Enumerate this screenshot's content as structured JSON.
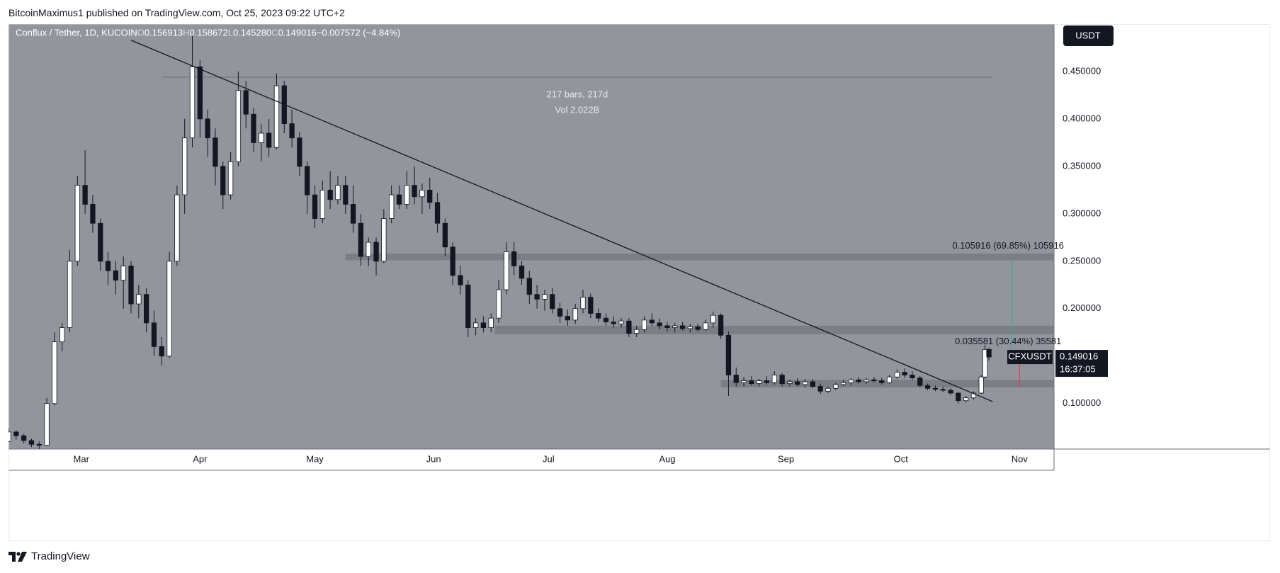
{
  "header": {
    "publisher": "BitcoinMaximus1 published on TradingView.com, Oct 25, 2023 09:22 UTC+2"
  },
  "footer": {
    "brand": "TradingView",
    "logo_icon": "tradingview-logo-icon"
  },
  "colors": {
    "chart_bg": "#93959d",
    "axis_bg": "#ffffff",
    "candle_up": "#ffffff",
    "candle_down": "#131722",
    "wick": "#131722",
    "zone": "#7c7e86",
    "trendline": "#131722",
    "price_label_bg": "#131722",
    "measure_green": "#22ab94",
    "measure_red": "#f23645"
  },
  "chart_data": {
    "type": "candlestick",
    "symbol": "Conflux / Tether, 1D, KUCOIN",
    "ohlc_legend": {
      "o_label": "O",
      "o": "0.156913",
      "h_label": "H",
      "h": "0.158672",
      "l_label": "L",
      "l": "0.145280",
      "c_label": "C",
      "c": "0.149016",
      "change": "−0.007572 (−4.84%)"
    },
    "currency_button": "USDT",
    "y_ticks": [
      {
        "value": 0.45,
        "label": "0.450000"
      },
      {
        "value": 0.4,
        "label": "0.400000"
      },
      {
        "value": 0.35,
        "label": "0.350000"
      },
      {
        "value": 0.3,
        "label": "0.300000"
      },
      {
        "value": 0.25,
        "label": "0.250000"
      },
      {
        "value": 0.2,
        "label": "0.200000"
      },
      {
        "value": 0.1,
        "label": "0.100000"
      }
    ],
    "ylim": [
      0.052,
      0.5
    ],
    "x_ticks": [
      {
        "date": "2023-03-01",
        "label": "Mar"
      },
      {
        "date": "2023-04-01",
        "label": "Apr"
      },
      {
        "date": "2023-05-01",
        "label": "May"
      },
      {
        "date": "2023-06-01",
        "label": "Jun"
      },
      {
        "date": "2023-07-01",
        "label": "Jul"
      },
      {
        "date": "2023-08-01",
        "label": "Aug"
      },
      {
        "date": "2023-09-01",
        "label": "Sep"
      },
      {
        "date": "2023-10-01",
        "label": "Oct"
      },
      {
        "date": "2023-11-01",
        "label": "Nov"
      }
    ],
    "xlim": [
      "2023-02-10",
      "2023-11-10"
    ],
    "current_price": {
      "symbol": "CFXUSDT",
      "price": "0.149016",
      "countdown": "16:37:05",
      "value": 0.149016
    },
    "zones": [
      {
        "y_low": 0.251,
        "y_high": 0.258,
        "x_start": "2023-05-09",
        "x_end": "2023-11-10"
      },
      {
        "y_low": 0.173,
        "y_high": 0.182,
        "x_start": "2023-06-17",
        "x_end": "2023-11-10"
      },
      {
        "y_low": 0.117,
        "y_high": 0.125,
        "x_start": "2023-08-15",
        "x_end": "2023-11-10"
      }
    ],
    "trendline": {
      "x1": "2023-03-14",
      "y1": 0.483,
      "x2": "2023-10-25",
      "y2": 0.102
    },
    "range_measure": {
      "x_start": "2023-03-22",
      "x_end": "2023-10-25",
      "y": 0.444,
      "label_bars": "217 bars, 217d",
      "label_vol": "Vol 2.022B"
    },
    "measurements": [
      {
        "text": "0.105916 (69.85%) 105916",
        "y": 0.266,
        "x": "2023-10-29",
        "color": "measure_green",
        "x_start": "2023-10-30",
        "y_from": 0.252,
        "y_to": 0.15
      },
      {
        "text": "0.035581 (30.44%) 35581",
        "y": 0.165,
        "x": "2023-10-29",
        "color": "measure_red",
        "x_start": "2023-11-01",
        "y_from": 0.15,
        "y_to": 0.117
      }
    ],
    "candles": [
      [
        "2023-02-10",
        0.06,
        0.074,
        0.06,
        0.07
      ],
      [
        "2023-02-12",
        0.07,
        0.072,
        0.062,
        0.066
      ],
      [
        "2023-02-14",
        0.066,
        0.068,
        0.058,
        0.061
      ],
      [
        "2023-02-16",
        0.061,
        0.063,
        0.054,
        0.057
      ],
      [
        "2023-02-18",
        0.057,
        0.06,
        0.052,
        0.056
      ],
      [
        "2023-02-20",
        0.056,
        0.106,
        0.055,
        0.1
      ],
      [
        "2023-02-22",
        0.1,
        0.175,
        0.098,
        0.165
      ],
      [
        "2023-02-24",
        0.165,
        0.185,
        0.155,
        0.18
      ],
      [
        "2023-02-26",
        0.18,
        0.262,
        0.175,
        0.25
      ],
      [
        "2023-02-28",
        0.25,
        0.34,
        0.245,
        0.33
      ],
      [
        "2023-03-02",
        0.33,
        0.367,
        0.3,
        0.31
      ],
      [
        "2023-03-04",
        0.31,
        0.32,
        0.28,
        0.29
      ],
      [
        "2023-03-06",
        0.29,
        0.295,
        0.24,
        0.25
      ],
      [
        "2023-03-08",
        0.25,
        0.26,
        0.225,
        0.24
      ],
      [
        "2023-03-10",
        0.24,
        0.25,
        0.215,
        0.23
      ],
      [
        "2023-03-12",
        0.23,
        0.255,
        0.2,
        0.245
      ],
      [
        "2023-03-14",
        0.245,
        0.25,
        0.195,
        0.205
      ],
      [
        "2023-03-16",
        0.205,
        0.225,
        0.19,
        0.215
      ],
      [
        "2023-03-18",
        0.215,
        0.222,
        0.175,
        0.185
      ],
      [
        "2023-03-20",
        0.185,
        0.198,
        0.15,
        0.16
      ],
      [
        "2023-03-22",
        0.16,
        0.17,
        0.14,
        0.15
      ],
      [
        "2023-03-24",
        0.15,
        0.26,
        0.148,
        0.25
      ],
      [
        "2023-03-26",
        0.25,
        0.33,
        0.245,
        0.32
      ],
      [
        "2023-03-28",
        0.32,
        0.4,
        0.3,
        0.38
      ],
      [
        "2023-03-30",
        0.38,
        0.488,
        0.37,
        0.455
      ],
      [
        "2023-04-01",
        0.455,
        0.462,
        0.38,
        0.4
      ],
      [
        "2023-04-03",
        0.4,
        0.41,
        0.36,
        0.38
      ],
      [
        "2023-04-05",
        0.38,
        0.39,
        0.33,
        0.35
      ],
      [
        "2023-04-07",
        0.35,
        0.355,
        0.305,
        0.32
      ],
      [
        "2023-04-09",
        0.32,
        0.365,
        0.315,
        0.355
      ],
      [
        "2023-04-11",
        0.355,
        0.45,
        0.35,
        0.43
      ],
      [
        "2023-04-13",
        0.43,
        0.44,
        0.39,
        0.405
      ],
      [
        "2023-04-15",
        0.405,
        0.412,
        0.365,
        0.375
      ],
      [
        "2023-04-17",
        0.375,
        0.395,
        0.355,
        0.385
      ],
      [
        "2023-04-19",
        0.385,
        0.4,
        0.36,
        0.37
      ],
      [
        "2023-04-21",
        0.37,
        0.448,
        0.368,
        0.435
      ],
      [
        "2023-04-23",
        0.435,
        0.44,
        0.385,
        0.395
      ],
      [
        "2023-04-25",
        0.395,
        0.41,
        0.37,
        0.38
      ],
      [
        "2023-04-27",
        0.38,
        0.386,
        0.34,
        0.35
      ],
      [
        "2023-04-29",
        0.35,
        0.355,
        0.3,
        0.32
      ],
      [
        "2023-05-01",
        0.32,
        0.33,
        0.285,
        0.295
      ],
      [
        "2023-05-03",
        0.295,
        0.335,
        0.29,
        0.325
      ],
      [
        "2023-05-05",
        0.325,
        0.345,
        0.305,
        0.315
      ],
      [
        "2023-05-07",
        0.315,
        0.34,
        0.31,
        0.33
      ],
      [
        "2023-05-09",
        0.33,
        0.34,
        0.3,
        0.31
      ],
      [
        "2023-05-11",
        0.31,
        0.33,
        0.28,
        0.29
      ],
      [
        "2023-05-13",
        0.29,
        0.3,
        0.245,
        0.255
      ],
      [
        "2023-05-15",
        0.255,
        0.275,
        0.245,
        0.27
      ],
      [
        "2023-05-17",
        0.27,
        0.275,
        0.235,
        0.25
      ],
      [
        "2023-05-19",
        0.25,
        0.305,
        0.248,
        0.295
      ],
      [
        "2023-05-21",
        0.295,
        0.33,
        0.29,
        0.32
      ],
      [
        "2023-05-23",
        0.32,
        0.33,
        0.305,
        0.31
      ],
      [
        "2023-05-25",
        0.31,
        0.345,
        0.305,
        0.33
      ],
      [
        "2023-05-27",
        0.33,
        0.35,
        0.31,
        0.318
      ],
      [
        "2023-05-29",
        0.318,
        0.332,
        0.3,
        0.325
      ],
      [
        "2023-05-31",
        0.325,
        0.338,
        0.305,
        0.312
      ],
      [
        "2023-06-02",
        0.312,
        0.322,
        0.28,
        0.29
      ],
      [
        "2023-06-04",
        0.29,
        0.295,
        0.255,
        0.265
      ],
      [
        "2023-06-06",
        0.265,
        0.27,
        0.225,
        0.235
      ],
      [
        "2023-06-08",
        0.235,
        0.245,
        0.215,
        0.225
      ],
      [
        "2023-06-10",
        0.225,
        0.23,
        0.17,
        0.18
      ],
      [
        "2023-06-12",
        0.18,
        0.19,
        0.172,
        0.185
      ],
      [
        "2023-06-14",
        0.185,
        0.192,
        0.175,
        0.18
      ],
      [
        "2023-06-16",
        0.18,
        0.195,
        0.175,
        0.19
      ],
      [
        "2023-06-18",
        0.19,
        0.23,
        0.185,
        0.22
      ],
      [
        "2023-06-20",
        0.22,
        0.27,
        0.215,
        0.26
      ],
      [
        "2023-06-22",
        0.26,
        0.27,
        0.235,
        0.245
      ],
      [
        "2023-06-24",
        0.245,
        0.25,
        0.225,
        0.232
      ],
      [
        "2023-06-26",
        0.232,
        0.24,
        0.205,
        0.215
      ],
      [
        "2023-06-28",
        0.215,
        0.225,
        0.2,
        0.21
      ],
      [
        "2023-06-30",
        0.21,
        0.22,
        0.198,
        0.215
      ],
      [
        "2023-07-02",
        0.215,
        0.222,
        0.195,
        0.2
      ],
      [
        "2023-07-04",
        0.2,
        0.206,
        0.185,
        0.192
      ],
      [
        "2023-07-06",
        0.192,
        0.199,
        0.182,
        0.188
      ],
      [
        "2023-07-08",
        0.188,
        0.205,
        0.184,
        0.2
      ],
      [
        "2023-07-10",
        0.2,
        0.22,
        0.195,
        0.212
      ],
      [
        "2023-07-12",
        0.212,
        0.216,
        0.19,
        0.195
      ],
      [
        "2023-07-14",
        0.195,
        0.2,
        0.186,
        0.19
      ],
      [
        "2023-07-16",
        0.19,
        0.195,
        0.182,
        0.186
      ],
      [
        "2023-07-18",
        0.186,
        0.192,
        0.18,
        0.184
      ],
      [
        "2023-07-20",
        0.184,
        0.19,
        0.18,
        0.187
      ],
      [
        "2023-07-22",
        0.187,
        0.19,
        0.17,
        0.174
      ],
      [
        "2023-07-24",
        0.174,
        0.182,
        0.17,
        0.178
      ],
      [
        "2023-07-26",
        0.178,
        0.192,
        0.175,
        0.188
      ],
      [
        "2023-07-28",
        0.188,
        0.195,
        0.182,
        0.185
      ],
      [
        "2023-07-30",
        0.185,
        0.19,
        0.178,
        0.182
      ],
      [
        "2023-08-01",
        0.182,
        0.186,
        0.176,
        0.18
      ],
      [
        "2023-08-03",
        0.18,
        0.185,
        0.175,
        0.182
      ],
      [
        "2023-08-05",
        0.182,
        0.186,
        0.177,
        0.179
      ],
      [
        "2023-08-07",
        0.179,
        0.184,
        0.175,
        0.181
      ],
      [
        "2023-08-09",
        0.181,
        0.184,
        0.176,
        0.178
      ],
      [
        "2023-08-11",
        0.178,
        0.188,
        0.176,
        0.185
      ],
      [
        "2023-08-13",
        0.185,
        0.197,
        0.18,
        0.193
      ],
      [
        "2023-08-15",
        0.193,
        0.195,
        0.168,
        0.172
      ],
      [
        "2023-08-17",
        0.172,
        0.176,
        0.108,
        0.13
      ],
      [
        "2023-08-19",
        0.13,
        0.138,
        0.118,
        0.122
      ],
      [
        "2023-08-21",
        0.122,
        0.128,
        0.118,
        0.124
      ],
      [
        "2023-08-23",
        0.124,
        0.129,
        0.119,
        0.121
      ],
      [
        "2023-08-25",
        0.121,
        0.126,
        0.118,
        0.124
      ],
      [
        "2023-08-27",
        0.124,
        0.129,
        0.12,
        0.122
      ],
      [
        "2023-08-29",
        0.122,
        0.134,
        0.12,
        0.13
      ],
      [
        "2023-08-31",
        0.13,
        0.132,
        0.118,
        0.121
      ],
      [
        "2023-09-02",
        0.121,
        0.125,
        0.118,
        0.123
      ],
      [
        "2023-09-04",
        0.123,
        0.127,
        0.118,
        0.12
      ],
      [
        "2023-09-06",
        0.12,
        0.126,
        0.117,
        0.123
      ],
      [
        "2023-09-08",
        0.123,
        0.126,
        0.116,
        0.118
      ],
      [
        "2023-09-10",
        0.118,
        0.121,
        0.11,
        0.113
      ],
      [
        "2023-09-12",
        0.113,
        0.118,
        0.111,
        0.116
      ],
      [
        "2023-09-14",
        0.116,
        0.122,
        0.114,
        0.12
      ],
      [
        "2023-09-16",
        0.12,
        0.125,
        0.118,
        0.122
      ],
      [
        "2023-09-18",
        0.122,
        0.127,
        0.119,
        0.125
      ],
      [
        "2023-09-20",
        0.125,
        0.128,
        0.121,
        0.123
      ],
      [
        "2023-09-22",
        0.123,
        0.127,
        0.121,
        0.125
      ],
      [
        "2023-09-24",
        0.125,
        0.128,
        0.122,
        0.124
      ],
      [
        "2023-09-26",
        0.124,
        0.127,
        0.12,
        0.122
      ],
      [
        "2023-09-28",
        0.122,
        0.13,
        0.121,
        0.128
      ],
      [
        "2023-09-30",
        0.128,
        0.136,
        0.126,
        0.133
      ],
      [
        "2023-10-02",
        0.133,
        0.137,
        0.127,
        0.13
      ],
      [
        "2023-10-04",
        0.13,
        0.134,
        0.125,
        0.127
      ],
      [
        "2023-10-06",
        0.127,
        0.129,
        0.117,
        0.119
      ],
      [
        "2023-10-08",
        0.119,
        0.121,
        0.114,
        0.116
      ],
      [
        "2023-10-10",
        0.116,
        0.119,
        0.113,
        0.115
      ],
      [
        "2023-10-12",
        0.115,
        0.118,
        0.112,
        0.114
      ],
      [
        "2023-10-14",
        0.114,
        0.116,
        0.109,
        0.111
      ],
      [
        "2023-10-16",
        0.111,
        0.112,
        0.1,
        0.103
      ],
      [
        "2023-10-18",
        0.103,
        0.108,
        0.101,
        0.106
      ],
      [
        "2023-10-20",
        0.106,
        0.113,
        0.104,
        0.111
      ],
      [
        "2023-10-22",
        0.111,
        0.13,
        0.11,
        0.128
      ],
      [
        "2023-10-23",
        0.128,
        0.162,
        0.126,
        0.157
      ],
      [
        "2023-10-24",
        0.156913,
        0.158672,
        0.14528,
        0.149016
      ]
    ]
  }
}
